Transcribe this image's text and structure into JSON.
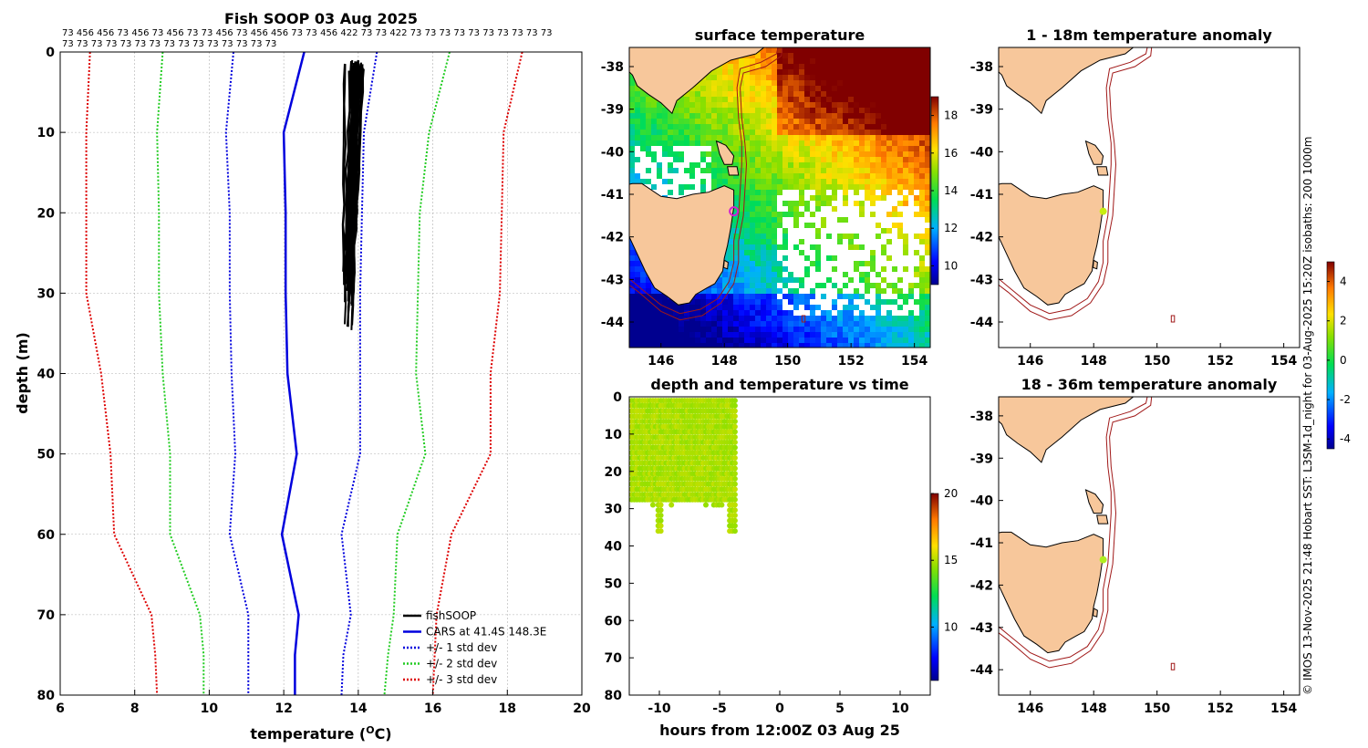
{
  "chart_data": [
    {
      "type": "line",
      "id": "profile",
      "title": "Fish SOOP 03 Aug 2025",
      "counts_row1": "73 456 456 73 456 73 456 73 73 456 73 456 456 73 73 456 422 73 73 422 73 73 73 73 73 73 73 73 73 73",
      "counts_row2": "73 73 73 73 73 73 73 73 73 73 73 73 73 73 73",
      "xlabel": "temperature (",
      "xlabel_sup": "O",
      "xlabel_tail": "C)",
      "ylabel": "depth (m)",
      "xlim": [
        6,
        20
      ],
      "ylim": [
        0,
        80
      ],
      "xticks": [
        "6",
        "8",
        "10",
        "12",
        "14",
        "16",
        "18",
        "20"
      ],
      "yticks": [
        "0",
        "10",
        "20",
        "30",
        "40",
        "50",
        "60",
        "70",
        "80"
      ],
      "depths": [
        0,
        10,
        20,
        30,
        40,
        50,
        60,
        70,
        75,
        80
      ],
      "cars_mean": [
        12.55,
        12.0,
        12.05,
        12.05,
        12.1,
        12.35,
        11.95,
        12.4,
        12.3,
        12.3
      ],
      "std1_minus": [
        10.65,
        10.45,
        10.55,
        10.55,
        10.6,
        10.7,
        10.55,
        11.05,
        11.05,
        11.05
      ],
      "std1_plus": [
        14.5,
        14.15,
        14.1,
        14.05,
        14.05,
        14.05,
        13.55,
        13.8,
        13.6,
        13.55
      ],
      "std2_minus": [
        8.75,
        8.6,
        8.65,
        8.65,
        8.75,
        8.95,
        8.95,
        9.75,
        9.85,
        9.85
      ],
      "std2_plus": [
        16.45,
        15.9,
        15.65,
        15.6,
        15.55,
        15.8,
        15.05,
        14.95,
        14.8,
        14.7
      ],
      "std3_minus": [
        6.8,
        6.7,
        6.7,
        6.7,
        7.1,
        7.35,
        7.45,
        8.45,
        8.55,
        8.6
      ],
      "std3_plus": [
        18.4,
        17.9,
        17.85,
        17.8,
        17.55,
        17.55,
        16.5,
        16.1,
        16.05,
        16.0
      ],
      "fish_depth_max": 36,
      "fish_temp_range": [
        13.6,
        14.2
      ],
      "legend": [
        "fishSOOP",
        "CARS at 41.4S 148.3E",
        "+/- 1 std dev",
        "+/- 2 std dev",
        "+/- 3 std dev"
      ],
      "colors": {
        "fish": "#000000",
        "cars": "#0000dd",
        "std1": "#0000dd",
        "std2": "#22cc22",
        "std3": "#dd0000"
      }
    },
    {
      "type": "heatmap",
      "id": "sst_map",
      "title": "surface temperature",
      "xticks": [
        "146",
        "148",
        "150",
        "152",
        "154"
      ],
      "yticks": [
        "-38",
        "-39",
        "-40",
        "-41",
        "-42",
        "-43",
        "-44"
      ],
      "xlim": [
        145,
        154.5
      ],
      "ylim": [
        -44.6,
        -37.55
      ],
      "colorbar_ticks": [
        "18",
        "16",
        "14",
        "12",
        "10"
      ],
      "colorbar_range": [
        9,
        19
      ]
    },
    {
      "type": "scatter",
      "id": "depth_time",
      "title": "depth and temperature vs time",
      "xlabel": "hours from 12:00Z 03 Aug 25",
      "xticks": [
        "-10",
        "-5",
        "0",
        "5",
        "10"
      ],
      "yticks": [
        "0",
        "10",
        "20",
        "30",
        "40",
        "50",
        "60",
        "70",
        "80"
      ],
      "xlim": [
        -12.5,
        12.5
      ],
      "ylim": [
        0,
        80
      ],
      "time_range": [
        -12.3,
        -3.7
      ],
      "depth_max": 36,
      "colorbar_ticks": [
        "20",
        "15",
        "10"
      ],
      "colorbar_range": [
        6,
        20
      ]
    },
    {
      "type": "heatmap",
      "id": "anom_1_18",
      "title": "1 - 18m temperature anomaly",
      "xticks": [
        "146",
        "148",
        "150",
        "152",
        "154"
      ],
      "yticks": [
        "-38",
        "-39",
        "-40",
        "-41",
        "-42",
        "-43",
        "-44"
      ],
      "xlim": [
        145,
        154.5
      ],
      "ylim": [
        -44.6,
        -37.55
      ]
    },
    {
      "type": "heatmap",
      "id": "anom_18_36",
      "title": "18 - 36m temperature anomaly",
      "xticks": [
        "146",
        "148",
        "150",
        "152",
        "154"
      ],
      "yticks": [
        "-38",
        "-39",
        "-40",
        "-41",
        "-42",
        "-43",
        "-44"
      ],
      "xlim": [
        145,
        154.5
      ],
      "ylim": [
        -44.6,
        -37.55
      ],
      "colorbar_ticks": [
        "4",
        "2",
        "0",
        "-2",
        "-4"
      ],
      "colorbar_range": [
        -4.5,
        5.0
      ]
    }
  ],
  "side_caption": "© IMOS 13-Nov-2025 21:48 Hobart SST: L3SM-1d_night for 03-Aug-2025 15:20Z isobaths: 200  1000m"
}
